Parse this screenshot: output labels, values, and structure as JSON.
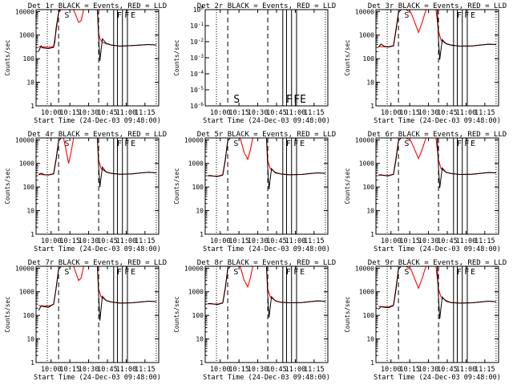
{
  "chart_data": {
    "type": "line",
    "grid_layout": "3x3",
    "x_axis": {
      "label": "Start Time (24-Dec-03 09:48:00)",
      "tick_labels": [
        "10:00",
        "10:15",
        "10:30",
        "10:45",
        "11:00",
        "11:15"
      ],
      "tick_minutes": [
        0,
        15,
        30,
        45,
        60,
        75
      ],
      "range_minutes": [
        -12,
        86
      ],
      "minutes_origin": "10:00"
    },
    "y_axis": {
      "label": "Counts/sec",
      "scale": "log",
      "tick_labels_normal": [
        "1",
        "10",
        "100",
        "1000",
        "10000"
      ],
      "range_normal": [
        1,
        12000
      ],
      "tick_labels_2r": [
        "10^0",
        "10^-1",
        "10^-2",
        "10^-3",
        "10^-4",
        "10^-5",
        "10^-6"
      ]
    },
    "legend": "BLACK = Events, RED = LLD",
    "series_colors": {
      "events": "#000000",
      "lld": "#ff0000"
    },
    "markers": {
      "dotted_minutes": [
        -3,
        84
      ],
      "dashed_minutes": [
        6,
        38
      ],
      "solid_minutes": [
        50,
        53,
        57,
        61
      ],
      "letters": [
        {
          "text": "S",
          "minute": 10
        },
        {
          "text": "F",
          "minute": 52
        },
        {
          "text": "F",
          "minute": 58
        },
        {
          "text": "E",
          "minute": 63
        }
      ]
    },
    "panels": [
      {
        "title": "Det 1r BLACK = Events, RED = LLD",
        "has_data": true,
        "events_minutes": [
          -10,
          -8,
          -7,
          -5,
          -2,
          2,
          3,
          4,
          6,
          7,
          8,
          10,
          14,
          16,
          18,
          22,
          26,
          30,
          34,
          37,
          38,
          39,
          41,
          44,
          48,
          55,
          65,
          72,
          78,
          84
        ],
        "events_values": [
          200,
          350,
          290,
          280,
          270,
          300,
          500,
          2000,
          9000,
          12000,
          12000,
          12000,
          12000,
          12000,
          12000,
          12000,
          12000,
          12000,
          12000,
          12000,
          800,
          80,
          700,
          450,
          380,
          340,
          360,
          380,
          400,
          380
        ],
        "lld_minutes": [
          -10,
          -5,
          -2,
          2,
          4,
          6,
          8,
          12,
          15,
          18,
          22,
          24,
          26,
          30,
          34,
          37,
          38,
          39,
          41,
          44,
          48,
          55,
          65,
          72,
          78,
          84
        ],
        "lld_values": [
          320,
          310,
          300,
          330,
          1500,
          9000,
          12000,
          12000,
          12000,
          12000,
          3500,
          4000,
          12000,
          12000,
          12000,
          12000,
          1200,
          700,
          500,
          430,
          380,
          340,
          360,
          380,
          400,
          380
        ]
      },
      {
        "title": "Det 2r BLACK = Events, RED = LLD",
        "has_data": false,
        "events_minutes": [],
        "events_values": [],
        "lld_minutes": [],
        "lld_values": []
      },
      {
        "title": "Det 3r BLACK = Events, RED = LLD",
        "has_data": true,
        "events_minutes": [
          -10,
          -8,
          -5,
          -2,
          2,
          4,
          6,
          8,
          12,
          16,
          22,
          26,
          30,
          34,
          37,
          38,
          39,
          41,
          44,
          48,
          55,
          65,
          72,
          78,
          84
        ],
        "events_values": [
          300,
          420,
          330,
          310,
          350,
          1500,
          9000,
          12000,
          12000,
          12000,
          12000,
          12000,
          12000,
          12000,
          12000,
          600,
          90,
          650,
          430,
          370,
          340,
          350,
          380,
          410,
          400
        ],
        "lld_minutes": [
          -10,
          -5,
          -2,
          2,
          4,
          6,
          8,
          12,
          16,
          19,
          22,
          25,
          28,
          32,
          36,
          38,
          40,
          44,
          48,
          55,
          65,
          72,
          78,
          84
        ],
        "lld_values": [
          330,
          320,
          320,
          360,
          1800,
          9000,
          12000,
          12000,
          9000,
          3500,
          1300,
          3500,
          12000,
          12000,
          12000,
          1500,
          600,
          440,
          380,
          340,
          350,
          380,
          410,
          400
        ]
      },
      {
        "title": "Det 4r BLACK = Events, RED = LLD",
        "has_data": true,
        "events_minutes": [
          -10,
          -8,
          -5,
          -2,
          2,
          4,
          6,
          8,
          12,
          16,
          22,
          26,
          30,
          34,
          37,
          38,
          39,
          41,
          44,
          48,
          55,
          65,
          72,
          78,
          84
        ],
        "events_values": [
          340,
          380,
          330,
          320,
          360,
          1400,
          9000,
          12000,
          12000,
          12000,
          12000,
          12000,
          12000,
          12000,
          12000,
          700,
          100,
          700,
          430,
          380,
          350,
          360,
          400,
          420,
          400
        ],
        "lld_minutes": [
          -10,
          -5,
          -2,
          2,
          4,
          6,
          8,
          10,
          12,
          14,
          16,
          18,
          22,
          26,
          30,
          34,
          37,
          38,
          40,
          44,
          48,
          55,
          65,
          72,
          78,
          84
        ],
        "lld_values": [
          340,
          330,
          330,
          370,
          1600,
          9000,
          12000,
          12000,
          3500,
          1000,
          3000,
          12000,
          12000,
          12000,
          12000,
          12000,
          12000,
          1400,
          600,
          440,
          380,
          350,
          360,
          400,
          420,
          400
        ]
      },
      {
        "title": "Det 5r BLACK = Events, RED = LLD",
        "has_data": true,
        "events_minutes": [
          -10,
          -8,
          -5,
          -2,
          2,
          4,
          6,
          8,
          12,
          16,
          22,
          26,
          30,
          34,
          37,
          38,
          39,
          41,
          44,
          48,
          55,
          65,
          72,
          78,
          84
        ],
        "events_values": [
          300,
          310,
          290,
          280,
          320,
          1300,
          9000,
          12000,
          12000,
          12000,
          12000,
          12000,
          12000,
          12000,
          12000,
          600,
          80,
          600,
          400,
          360,
          330,
          340,
          370,
          400,
          380
        ],
        "lld_minutes": [
          -10,
          -5,
          -2,
          2,
          4,
          6,
          8,
          12,
          16,
          19,
          22,
          24,
          26,
          30,
          34,
          37,
          38,
          40,
          44,
          48,
          55,
          65,
          72,
          78,
          84
        ],
        "lld_values": [
          300,
          290,
          290,
          330,
          1500,
          9000,
          12000,
          12000,
          12000,
          3000,
          1500,
          3500,
          12000,
          12000,
          12000,
          12000,
          1300,
          600,
          420,
          360,
          330,
          340,
          370,
          400,
          380
        ]
      },
      {
        "title": "Det 6r BLACK = Events, RED = LLD",
        "has_data": true,
        "events_minutes": [
          -10,
          -8,
          -5,
          -2,
          2,
          4,
          6,
          8,
          12,
          16,
          22,
          26,
          30,
          34,
          37,
          38,
          39,
          41,
          44,
          48,
          55,
          65,
          72,
          78,
          84
        ],
        "events_values": [
          320,
          330,
          310,
          300,
          340,
          1400,
          9000,
          12000,
          12000,
          12000,
          12000,
          12000,
          12000,
          12000,
          12000,
          650,
          90,
          650,
          420,
          370,
          340,
          350,
          380,
          410,
          400
        ],
        "lld_minutes": [
          -10,
          -5,
          -2,
          2,
          4,
          6,
          8,
          12,
          16,
          19,
          22,
          25,
          28,
          32,
          36,
          38,
          40,
          44,
          48,
          55,
          65,
          72,
          78,
          84
        ],
        "lld_values": [
          320,
          310,
          310,
          350,
          1700,
          9000,
          12000,
          12000,
          9000,
          3800,
          1600,
          4000,
          12000,
          12000,
          12000,
          1400,
          600,
          430,
          370,
          340,
          350,
          380,
          410,
          400
        ]
      },
      {
        "title": "Det 7r BLACK = Events, RED = LLD",
        "has_data": true,
        "events_minutes": [
          -10,
          -8,
          -7,
          -5,
          -2,
          2,
          4,
          6,
          8,
          12,
          16,
          22,
          26,
          30,
          34,
          37,
          38,
          39,
          41,
          44,
          48,
          55,
          65,
          72,
          78,
          84
        ],
        "events_values": [
          160,
          250,
          240,
          230,
          220,
          300,
          1400,
          9000,
          12000,
          12000,
          12000,
          12000,
          12000,
          12000,
          12000,
          12000,
          700,
          60,
          650,
          420,
          370,
          330,
          340,
          370,
          400,
          380
        ],
        "lld_minutes": [
          -10,
          -5,
          -2,
          2,
          4,
          6,
          8,
          12,
          15,
          18,
          22,
          24,
          26,
          30,
          34,
          37,
          38,
          40,
          44,
          48,
          55,
          65,
          72,
          78,
          84
        ],
        "lld_values": [
          260,
          250,
          250,
          290,
          1400,
          9000,
          12000,
          12000,
          12000,
          12000,
          3000,
          3800,
          12000,
          12000,
          12000,
          12000,
          1300,
          600,
          430,
          370,
          330,
          340,
          370,
          400,
          380
        ]
      },
      {
        "title": "Det 8r BLACK = Events, RED = LLD",
        "has_data": true,
        "events_minutes": [
          -10,
          -8,
          -5,
          -2,
          2,
          4,
          6,
          8,
          12,
          16,
          22,
          26,
          30,
          34,
          37,
          38,
          39,
          41,
          44,
          48,
          55,
          65,
          72,
          78,
          84
        ],
        "events_values": [
          310,
          320,
          300,
          290,
          330,
          1300,
          9000,
          12000,
          12000,
          12000,
          12000,
          12000,
          12000,
          12000,
          12000,
          650,
          80,
          620,
          410,
          360,
          340,
          350,
          380,
          410,
          390
        ],
        "lld_minutes": [
          -10,
          -5,
          -2,
          2,
          4,
          6,
          8,
          12,
          16,
          19,
          22,
          24,
          26,
          30,
          34,
          37,
          38,
          40,
          44,
          48,
          55,
          65,
          72,
          78,
          84
        ],
        "lld_values": [
          310,
          300,
          300,
          340,
          1500,
          9000,
          12000,
          12000,
          12000,
          3200,
          1600,
          3600,
          12000,
          12000,
          12000,
          12000,
          1300,
          600,
          420,
          360,
          340,
          350,
          380,
          410,
          390
        ]
      },
      {
        "title": "Det 9r BLACK = Events, RED = LLD",
        "has_data": true,
        "events_minutes": [
          -10,
          -8,
          -5,
          -2,
          2,
          4,
          6,
          8,
          12,
          16,
          22,
          26,
          30,
          34,
          37,
          38,
          39,
          41,
          44,
          48,
          55,
          65,
          72,
          78,
          84
        ],
        "events_values": [
          180,
          230,
          220,
          210,
          260,
          1200,
          9000,
          12000,
          12000,
          12000,
          12000,
          12000,
          12000,
          12000,
          12000,
          550,
          70,
          600,
          400,
          350,
          330,
          340,
          370,
          400,
          380
        ],
        "lld_minutes": [
          -10,
          -5,
          -2,
          2,
          4,
          6,
          8,
          12,
          16,
          19,
          22,
          25,
          28,
          32,
          36,
          38,
          40,
          44,
          48,
          55,
          65,
          72,
          78,
          84
        ],
        "lld_values": [
          240,
          230,
          230,
          270,
          1500,
          9000,
          12000,
          12000,
          9000,
          3500,
          1400,
          3800,
          12000,
          12000,
          12000,
          1300,
          600,
          420,
          350,
          330,
          340,
          370,
          400,
          380
        ]
      }
    ]
  }
}
